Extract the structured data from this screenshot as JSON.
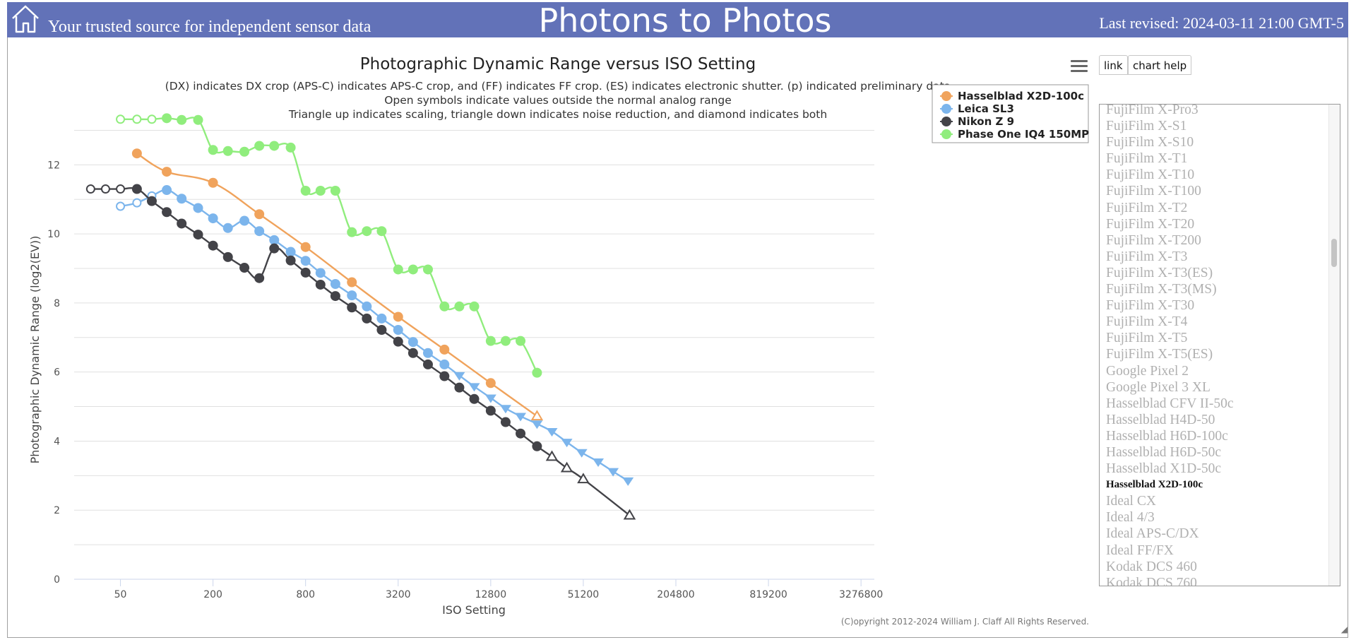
{
  "header": {
    "tagline": "Your trusted source for independent sensor data",
    "site_title": "Photons to Photos",
    "last_revised": "Last revised: 2024-03-11 21:00 GMT-5",
    "bg_color": "#6272b8"
  },
  "toolbar": {
    "link_label": "link",
    "help_label": "chart help",
    "menu_icon": "hamburger-menu-icon"
  },
  "chart_data": {
    "type": "line",
    "title": "Photographic Dynamic Range versus ISO Setting",
    "subtitles": [
      "(DX) indicates DX crop (APS-C) indicates APS-C crop, and (FF) indicates FF crop. (ES) indicates electronic shutter. (p) indicated preliminary data",
      "Open symbols indicate values outside the normal analog range",
      "Triangle up indicates scaling, triangle down indicates noise reduction, and diamond indicates both"
    ],
    "xlabel": "ISO Setting",
    "ylabel": "Photographic Dynamic Range (log2(EV))",
    "x_scale": "log",
    "xlim": [
      25,
      4000000
    ],
    "ylim": [
      0,
      13.5
    ],
    "x_ticks": [
      "50",
      "200",
      "800",
      "3200",
      "12800",
      "51200",
      "204800",
      "819200",
      "3276800"
    ],
    "x_tick_values": [
      50,
      200,
      800,
      3200,
      12800,
      51200,
      204800,
      819200,
      3276800
    ],
    "y_ticks": [
      0,
      2,
      4,
      6,
      8,
      10,
      12
    ],
    "grid": true,
    "legend_position": "top-right",
    "copyright": "(C)opyright 2012-2024 William J. Claff All Rights Reserved.",
    "series": [
      {
        "name": "Hasselblad X2D-100c",
        "color": "#f0a35c",
        "points": [
          {
            "x": 64,
            "y": 12.33,
            "s": "circle"
          },
          {
            "x": 100,
            "y": 11.8,
            "s": "circle"
          },
          {
            "x": 200,
            "y": 11.48,
            "s": "circle"
          },
          {
            "x": 400,
            "y": 10.57,
            "s": "circle"
          },
          {
            "x": 800,
            "y": 9.62,
            "s": "circle"
          },
          {
            "x": 1600,
            "y": 8.6,
            "s": "circle"
          },
          {
            "x": 3200,
            "y": 7.6,
            "s": "circle"
          },
          {
            "x": 6400,
            "y": 6.65,
            "s": "circle"
          },
          {
            "x": 12800,
            "y": 5.68,
            "s": "circle"
          },
          {
            "x": 25600,
            "y": 4.72,
            "s": "tri_up_open"
          }
        ]
      },
      {
        "name": "Leica SL3",
        "color": "#7cb5ec",
        "points": [
          {
            "x": 50,
            "y": 10.8,
            "s": "circle_open"
          },
          {
            "x": 64,
            "y": 10.9,
            "s": "circle_open"
          },
          {
            "x": 80,
            "y": 11.1,
            "s": "circle_open"
          },
          {
            "x": 100,
            "y": 11.27,
            "s": "circle"
          },
          {
            "x": 125,
            "y": 11.02,
            "s": "circle"
          },
          {
            "x": 160,
            "y": 10.75,
            "s": "circle"
          },
          {
            "x": 200,
            "y": 10.45,
            "s": "circle"
          },
          {
            "x": 250,
            "y": 10.17,
            "s": "circle"
          },
          {
            "x": 320,
            "y": 10.38,
            "s": "circle"
          },
          {
            "x": 400,
            "y": 10.08,
            "s": "circle"
          },
          {
            "x": 500,
            "y": 9.82,
            "s": "circle"
          },
          {
            "x": 640,
            "y": 9.48,
            "s": "circle"
          },
          {
            "x": 800,
            "y": 9.22,
            "s": "circle"
          },
          {
            "x": 1000,
            "y": 8.87,
            "s": "circle"
          },
          {
            "x": 1250,
            "y": 8.55,
            "s": "circle"
          },
          {
            "x": 1600,
            "y": 8.22,
            "s": "circle"
          },
          {
            "x": 2000,
            "y": 7.9,
            "s": "circle"
          },
          {
            "x": 2500,
            "y": 7.55,
            "s": "circle"
          },
          {
            "x": 3200,
            "y": 7.22,
            "s": "circle"
          },
          {
            "x": 4000,
            "y": 6.87,
            "s": "circle"
          },
          {
            "x": 5000,
            "y": 6.55,
            "s": "circle"
          },
          {
            "x": 6400,
            "y": 6.22,
            "s": "circle"
          },
          {
            "x": 8000,
            "y": 5.9,
            "s": "tri_down"
          },
          {
            "x": 10000,
            "y": 5.58,
            "s": "tri_down"
          },
          {
            "x": 12800,
            "y": 5.25,
            "s": "tri_down"
          },
          {
            "x": 16000,
            "y": 4.95,
            "s": "tri_down"
          },
          {
            "x": 20000,
            "y": 4.72,
            "s": "tri_down"
          },
          {
            "x": 25600,
            "y": 4.5,
            "s": "tri_down"
          },
          {
            "x": 32000,
            "y": 4.28,
            "s": "tri_down"
          },
          {
            "x": 40000,
            "y": 3.97,
            "s": "tri_down"
          },
          {
            "x": 50000,
            "y": 3.67,
            "s": "tri_down"
          },
          {
            "x": 64000,
            "y": 3.4,
            "s": "tri_down"
          },
          {
            "x": 80000,
            "y": 3.12,
            "s": "tri_down"
          },
          {
            "x": 100000,
            "y": 2.85,
            "s": "tri_down"
          }
        ]
      },
      {
        "name": "Nikon Z 9",
        "color": "#434348",
        "points": [
          {
            "x": 32,
            "y": 11.3,
            "s": "circle_open"
          },
          {
            "x": 40,
            "y": 11.3,
            "s": "circle_open"
          },
          {
            "x": 50,
            "y": 11.3,
            "s": "circle_open"
          },
          {
            "x": 64,
            "y": 11.3,
            "s": "circle"
          },
          {
            "x": 80,
            "y": 10.95,
            "s": "circle"
          },
          {
            "x": 100,
            "y": 10.63,
            "s": "circle"
          },
          {
            "x": 125,
            "y": 10.3,
            "s": "circle"
          },
          {
            "x": 160,
            "y": 9.98,
            "s": "circle"
          },
          {
            "x": 200,
            "y": 9.66,
            "s": "circle"
          },
          {
            "x": 250,
            "y": 9.33,
            "s": "circle"
          },
          {
            "x": 320,
            "y": 9.02,
            "s": "circle"
          },
          {
            "x": 400,
            "y": 8.72,
            "s": "circle"
          },
          {
            "x": 500,
            "y": 9.58,
            "s": "circle"
          },
          {
            "x": 640,
            "y": 9.23,
            "s": "circle"
          },
          {
            "x": 800,
            "y": 8.88,
            "s": "circle"
          },
          {
            "x": 1000,
            "y": 8.53,
            "s": "circle"
          },
          {
            "x": 1250,
            "y": 8.2,
            "s": "circle"
          },
          {
            "x": 1600,
            "y": 7.87,
            "s": "circle"
          },
          {
            "x": 2000,
            "y": 7.55,
            "s": "circle"
          },
          {
            "x": 2500,
            "y": 7.22,
            "s": "circle"
          },
          {
            "x": 3200,
            "y": 6.88,
            "s": "circle"
          },
          {
            "x": 4000,
            "y": 6.55,
            "s": "circle"
          },
          {
            "x": 5000,
            "y": 6.22,
            "s": "circle"
          },
          {
            "x": 6400,
            "y": 5.88,
            "s": "circle"
          },
          {
            "x": 8000,
            "y": 5.55,
            "s": "circle"
          },
          {
            "x": 10000,
            "y": 5.22,
            "s": "circle"
          },
          {
            "x": 12800,
            "y": 4.88,
            "s": "circle"
          },
          {
            "x": 16000,
            "y": 4.55,
            "s": "circle"
          },
          {
            "x": 20000,
            "y": 4.22,
            "s": "circle"
          },
          {
            "x": 25600,
            "y": 3.85,
            "s": "circle"
          },
          {
            "x": 32000,
            "y": 3.55,
            "s": "tri_up_open"
          },
          {
            "x": 40000,
            "y": 3.22,
            "s": "tri_up_open"
          },
          {
            "x": 51200,
            "y": 2.9,
            "s": "tri_up_open"
          },
          {
            "x": 102400,
            "y": 1.85,
            "s": "tri_up_open"
          }
        ]
      },
      {
        "name": "Phase One IQ4 150MP",
        "color": "#90ed7d",
        "points": [
          {
            "x": 50,
            "y": 13.32,
            "s": "circle_open"
          },
          {
            "x": 64,
            "y": 13.32,
            "s": "circle_open"
          },
          {
            "x": 80,
            "y": 13.32,
            "s": "circle_open"
          },
          {
            "x": 100,
            "y": 13.35,
            "s": "circle"
          },
          {
            "x": 125,
            "y": 13.3,
            "s": "circle"
          },
          {
            "x": 160,
            "y": 13.3,
            "s": "circle"
          },
          {
            "x": 200,
            "y": 12.43,
            "s": "circle"
          },
          {
            "x": 250,
            "y": 12.4,
            "s": "circle"
          },
          {
            "x": 320,
            "y": 12.38,
            "s": "circle"
          },
          {
            "x": 400,
            "y": 12.55,
            "s": "circle"
          },
          {
            "x": 500,
            "y": 12.55,
            "s": "circle"
          },
          {
            "x": 640,
            "y": 12.5,
            "s": "circle"
          },
          {
            "x": 800,
            "y": 11.25,
            "s": "circle"
          },
          {
            "x": 1000,
            "y": 11.25,
            "s": "circle"
          },
          {
            "x": 1250,
            "y": 11.25,
            "s": "circle"
          },
          {
            "x": 1600,
            "y": 10.05,
            "s": "circle"
          },
          {
            "x": 2000,
            "y": 10.08,
            "s": "circle"
          },
          {
            "x": 2500,
            "y": 10.08,
            "s": "circle"
          },
          {
            "x": 3200,
            "y": 8.97,
            "s": "circle"
          },
          {
            "x": 4000,
            "y": 8.97,
            "s": "circle"
          },
          {
            "x": 5000,
            "y": 8.97,
            "s": "circle"
          },
          {
            "x": 6400,
            "y": 7.9,
            "s": "circle"
          },
          {
            "x": 8000,
            "y": 7.9,
            "s": "circle"
          },
          {
            "x": 10000,
            "y": 7.9,
            "s": "circle"
          },
          {
            "x": 12800,
            "y": 6.9,
            "s": "circle"
          },
          {
            "x": 16000,
            "y": 6.9,
            "s": "circle"
          },
          {
            "x": 20000,
            "y": 6.9,
            "s": "circle"
          },
          {
            "x": 25600,
            "y": 5.98,
            "s": "circle"
          }
        ]
      }
    ]
  },
  "camera_list": {
    "items": [
      "FujiFilm X-Pro3",
      "FujiFilm X-S1",
      "FujiFilm X-S10",
      "FujiFilm X-T1",
      "FujiFilm X-T10",
      "FujiFilm X-T100",
      "FujiFilm X-T2",
      "FujiFilm X-T20",
      "FujiFilm X-T200",
      "FujiFilm X-T3",
      "FujiFilm X-T3(ES)",
      "FujiFilm X-T3(MS)",
      "FujiFilm X-T30",
      "FujiFilm X-T4",
      "FujiFilm X-T5",
      "FujiFilm X-T5(ES)",
      "Google Pixel 2",
      "Google Pixel 3 XL",
      "Hasselblad CFV II-50c",
      "Hasselblad H4D-50",
      "Hasselblad H6D-100c",
      "Hasselblad H6D-50c",
      "Hasselblad X1D-50c",
      "Hasselblad X2D-100c",
      "Ideal CX",
      "Ideal 4/3",
      "Ideal APS-C/DX",
      "Ideal FF/FX",
      "Kodak DCS 460",
      "Kodak DCS 760"
    ],
    "selected": "Hasselblad X2D-100c"
  }
}
